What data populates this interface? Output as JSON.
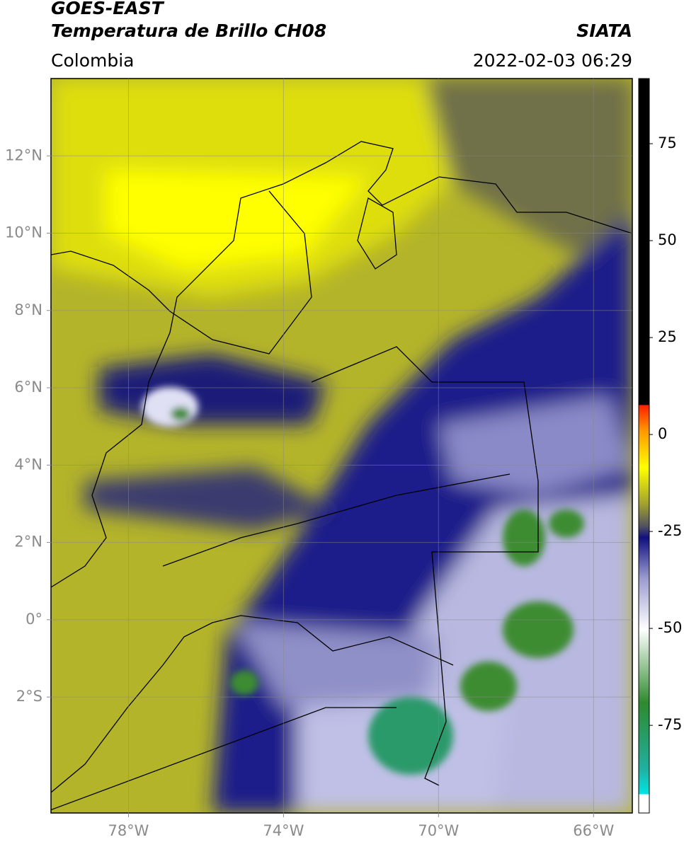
{
  "header": {
    "title": "GOES-EAST",
    "subtitle": "Temperatura de Brillo CH08",
    "source": "SIATA",
    "region": "Colombia",
    "datetime": "2022-02-03 06:29"
  },
  "map": {
    "xlim": [
      -80,
      -65
    ],
    "ylim": [
      -5,
      14
    ],
    "xticks": [
      {
        "value": -78,
        "label": "78°W"
      },
      {
        "value": -74,
        "label": "74°W"
      },
      {
        "value": -70,
        "label": "70°W"
      },
      {
        "value": -66,
        "label": "66°W"
      }
    ],
    "yticks": [
      {
        "value": 12,
        "label": "12°N"
      },
      {
        "value": 10,
        "label": "10°N"
      },
      {
        "value": 8,
        "label": "8°N"
      },
      {
        "value": 6,
        "label": "6°N"
      },
      {
        "value": 4,
        "label": "4°N"
      },
      {
        "value": 2,
        "label": "2°N"
      },
      {
        "value": 0,
        "label": "0°"
      },
      {
        "value": -2,
        "label": "2°S"
      }
    ],
    "grid": true
  },
  "colorbar": {
    "lim": [
      -97.6,
      91.8
    ],
    "ticks": [
      75,
      50,
      25,
      0,
      -25,
      -50,
      -75
    ]
  }
}
